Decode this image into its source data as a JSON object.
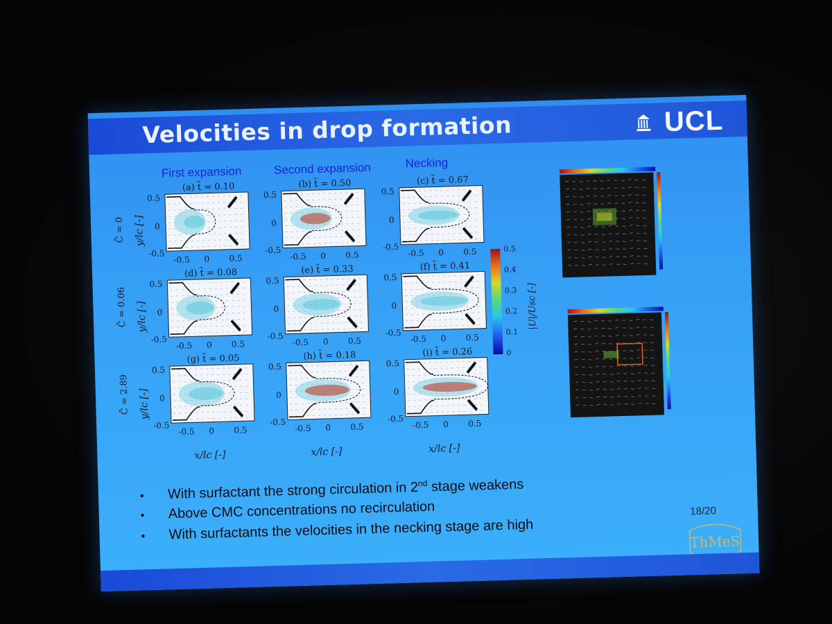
{
  "slide": {
    "title": "Velocities in drop formation",
    "logo": "UCL",
    "page_number": "18/20",
    "thames_logo": "ThMeS"
  },
  "columns": [
    "First expansion",
    "Second expansion",
    "Necking"
  ],
  "rows": [
    {
      "label": "C̃ = 0"
    },
    {
      "label": "C̃ = 0.06"
    },
    {
      "label": "C̃ = 2.89"
    }
  ],
  "panels": [
    {
      "title": "(a) t̃ = 0.10"
    },
    {
      "title": "(b) t̃ = 0.50"
    },
    {
      "title": "(c) t̃ = 0.67"
    },
    {
      "title": "(d) t̃ = 0.08"
    },
    {
      "title": "(e) t̃ = 0.33"
    },
    {
      "title": "(f) t̃ = 0.41"
    },
    {
      "title": "(g) t̃ = 0.05"
    },
    {
      "title": "(h) t̃ = 0.18"
    },
    {
      "title": "(i) t̃ = 0.26"
    }
  ],
  "axes": {
    "ylabel": "y/lc [-]",
    "xlabel": "x/lc [-]",
    "yticks": [
      "0.5",
      "0",
      "-0.5"
    ],
    "xticks": [
      "-0.5",
      "0",
      "0.5"
    ]
  },
  "colorbar": {
    "label": "|U|/Usc [-]",
    "ticks": [
      "0.5",
      "0.4",
      "0.3",
      "0.2",
      "0.1",
      "0"
    ]
  },
  "bullets": [
    {
      "pre": "With surfactant the strong circulation in 2",
      "sup": "nd",
      "post": " stage weakens"
    },
    {
      "pre": "Above CMC concentrations no recirculation",
      "sup": "",
      "post": ""
    },
    {
      "pre": "With surfactants the velocities in the necking stage are high",
      "sup": "",
      "post": ""
    }
  ],
  "colors": {
    "slide_bg": "#36a0f6",
    "title_bar": "#1f55d8",
    "column_heading": "#1a1fd8"
  }
}
